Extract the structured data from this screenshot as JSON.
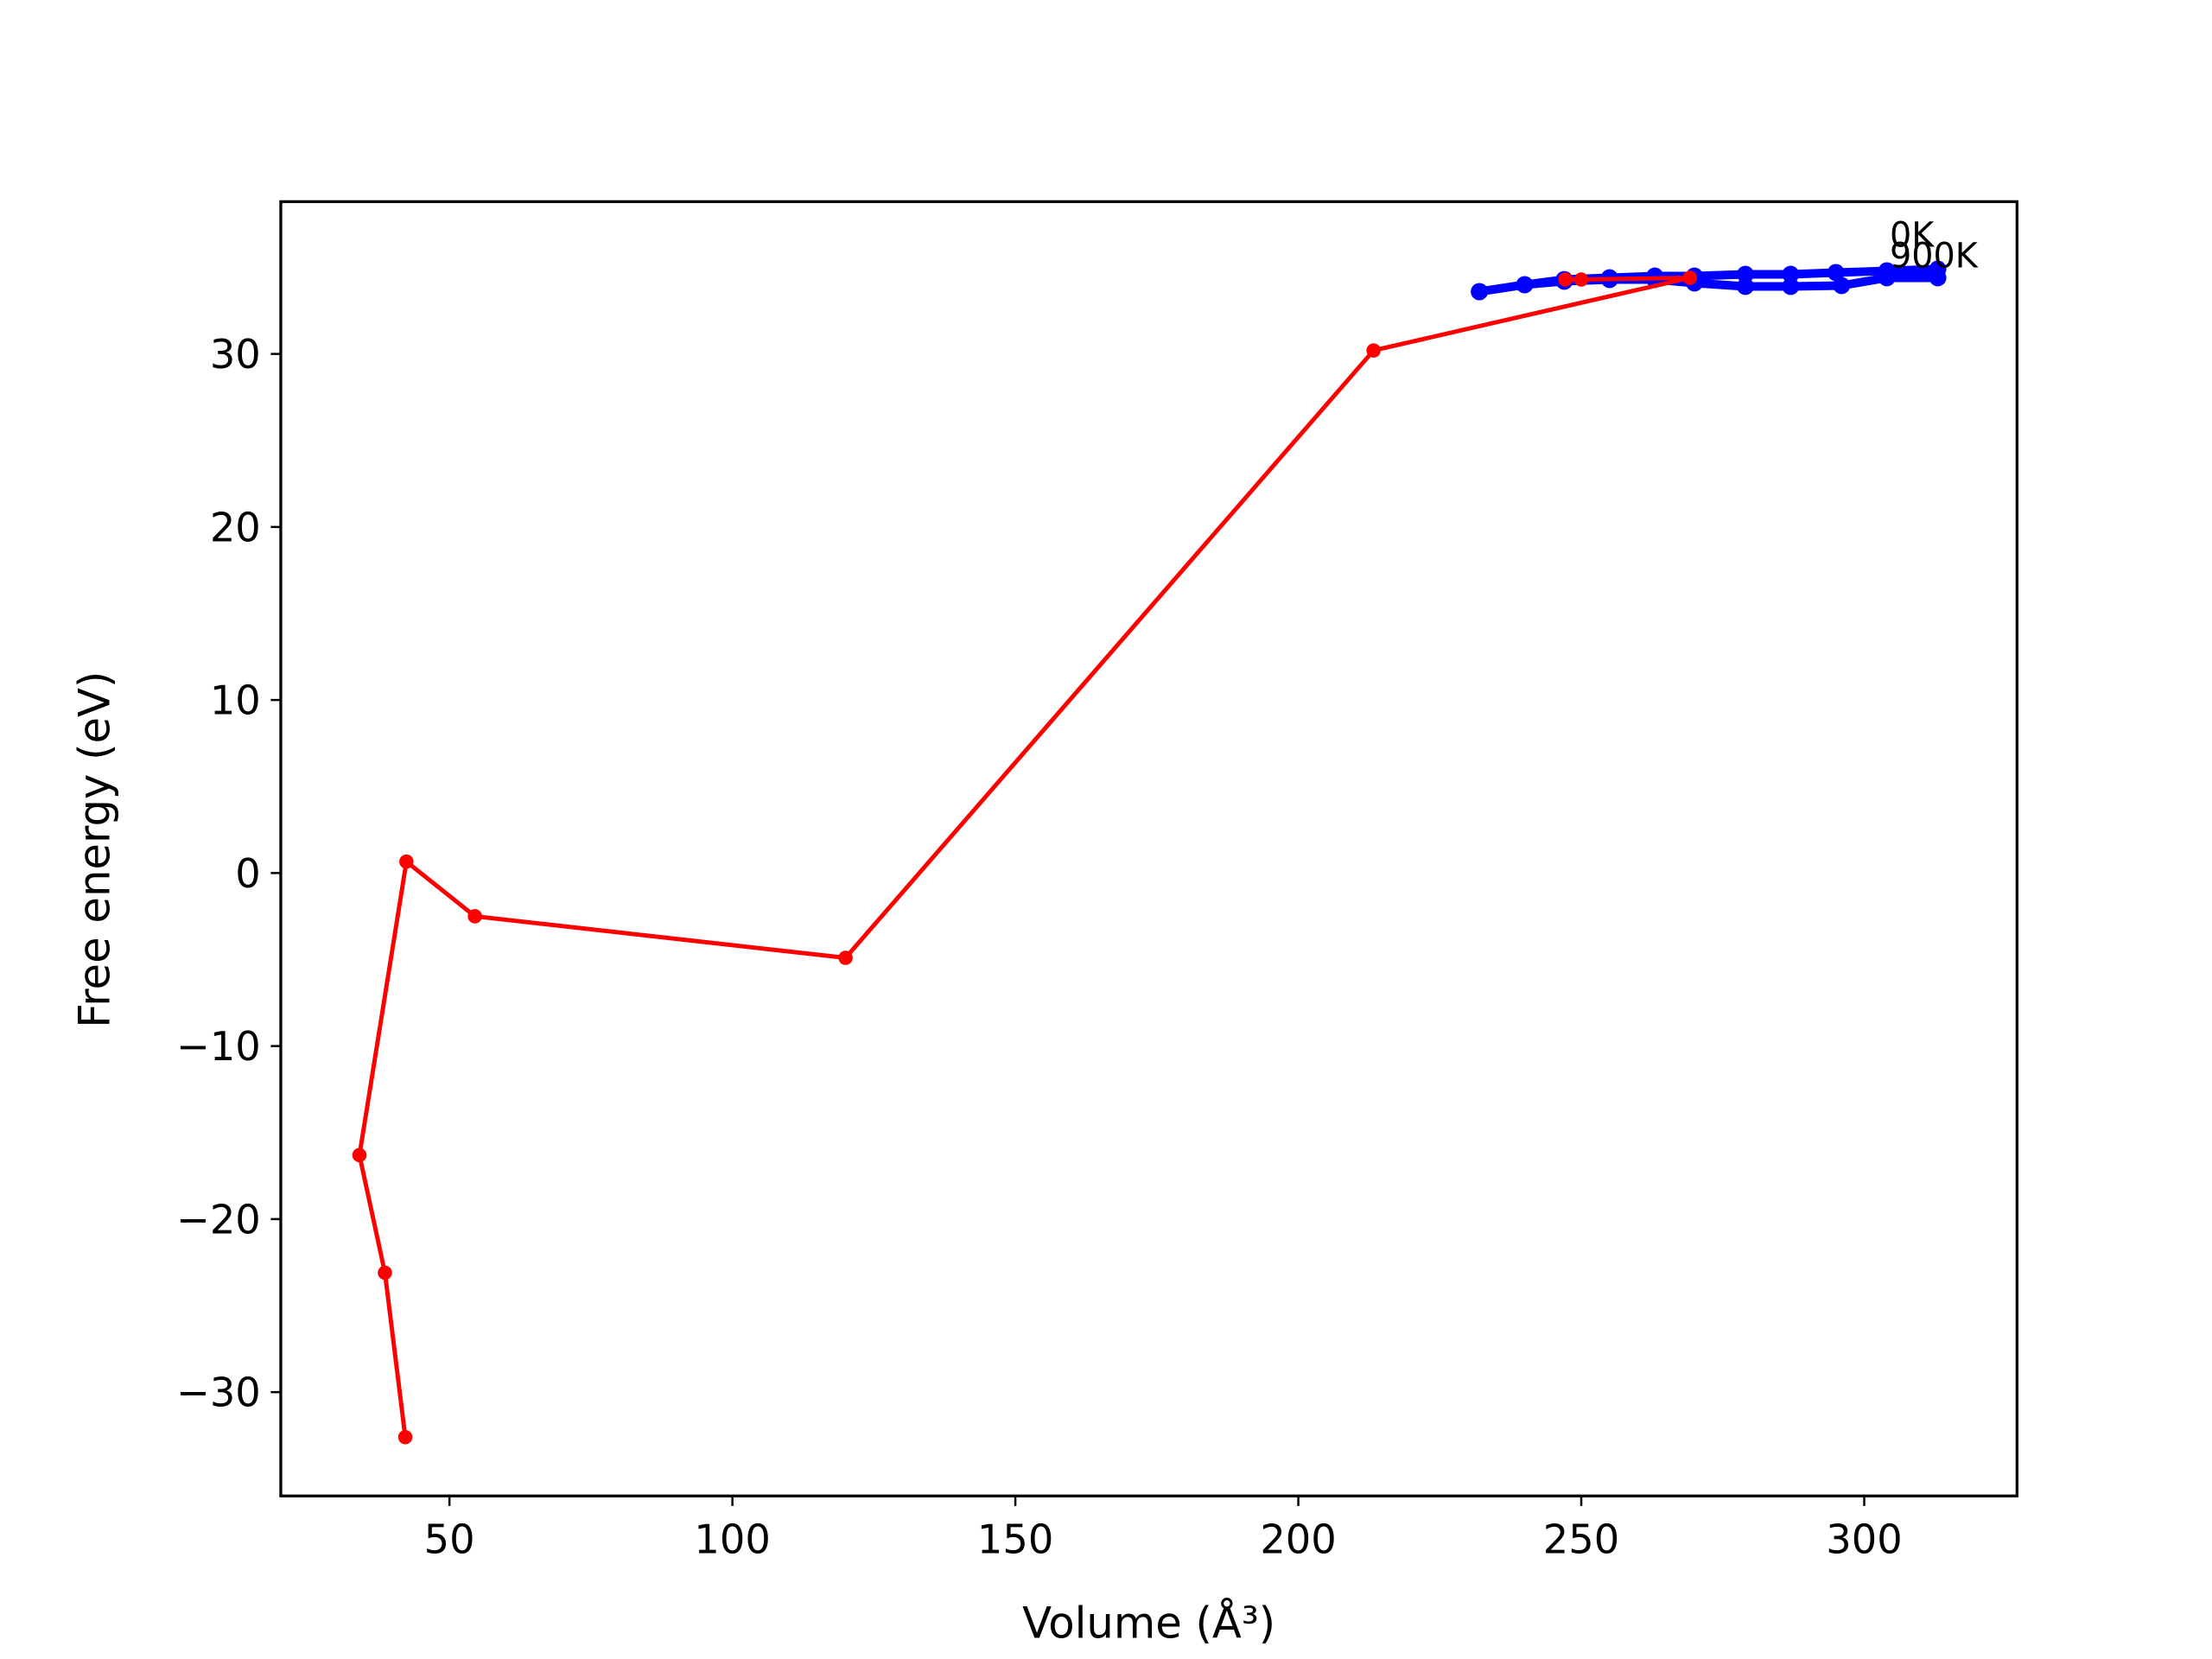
{
  "chart_data": {
    "type": "line",
    "xlabel": "Volume (Å³)",
    "ylabel": "Free energy (eV)",
    "xlim": [
      20.2,
      327
    ],
    "ylim": [
      -36.0,
      38.8
    ],
    "xticks": [
      50,
      100,
      150,
      200,
      250,
      300
    ],
    "yticks": [
      {
        "value": -30,
        "label": "−30"
      },
      {
        "value": -20,
        "label": "−20"
      },
      {
        "value": -10,
        "label": "−10"
      },
      0,
      10,
      20,
      30
    ],
    "series": [
      {
        "color": "#0000ff",
        "x": [
          232,
          240,
          247,
          255,
          263,
          270,
          279,
          287,
          295,
          304,
          313
        ],
        "values": [
          33.6,
          34.0,
          34.3,
          34.4,
          34.5,
          34.5,
          34.6,
          34.6,
          34.7,
          34.8,
          34.9
        ]
      },
      {
        "color": "#0000ff",
        "x": [
          232,
          240,
          247,
          255,
          263,
          270,
          279,
          287,
          296,
          304,
          313
        ],
        "values": [
          33.6,
          34.0,
          34.2,
          34.3,
          34.3,
          34.1,
          33.9,
          33.9,
          33.95,
          34.4,
          34.4
        ]
      },
      {
        "color": "#ff0000",
        "x": [
          42.2,
          38.6,
          34.1,
          42.4,
          54.5,
          120.0,
          213.3,
          269.2,
          250.0,
          247.2
        ],
        "values": [
          -32.6,
          -23.1,
          -16.3,
          0.66,
          -2.5,
          -4.9,
          30.2,
          34.4,
          34.3,
          34.3
        ]
      }
    ],
    "annotations": [
      {
        "text": "0K",
        "x": 304.5,
        "y": 36.2
      },
      {
        "text": "900K",
        "x": 304.5,
        "y": 35.0
      }
    ]
  }
}
